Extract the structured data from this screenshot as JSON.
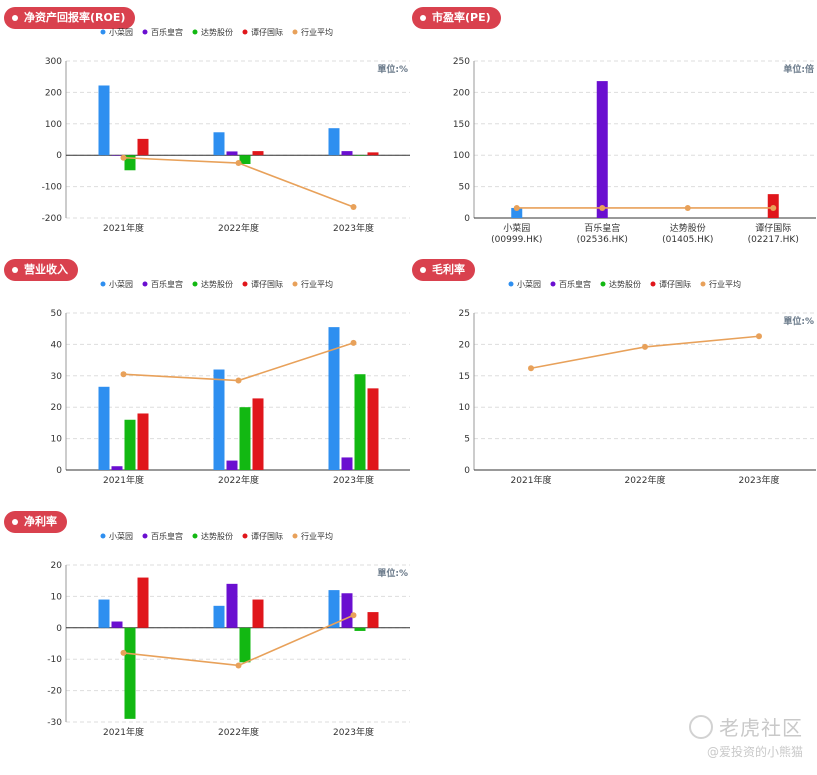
{
  "colors": {
    "pill_bg": "#d9414e",
    "series": [
      "#2e8ff0",
      "#6a0fd0",
      "#12b812",
      "#e0161b"
    ],
    "avg": "#e8a15a",
    "grid": "#dddddd",
    "axis": "#333333"
  },
  "watermark": {
    "brand": "老虎社区",
    "handle": "@爱投资的小熊猫"
  },
  "chart_data": [
    {
      "id": "roe",
      "type": "bar",
      "title": "净资产回报率(ROE)",
      "unit_label": "單位:%",
      "categories": [
        "2021年度",
        "2022年度",
        "2023年度"
      ],
      "ylim": [
        -200,
        300
      ],
      "yticks": [
        300,
        200,
        100,
        0,
        -100,
        -200
      ],
      "grid": true,
      "legend_position": "top",
      "series": [
        {
          "name": "小菜园",
          "values": [
            222,
            73,
            86
          ]
        },
        {
          "name": "百乐皇宫",
          "values": [
            0,
            12,
            13
          ]
        },
        {
          "name": "达势股份",
          "values": [
            -48,
            -28,
            0
          ]
        },
        {
          "name": "谭仔国际",
          "values": [
            52,
            13,
            9
          ]
        }
      ],
      "line": {
        "name": "行业平均",
        "values": [
          -8,
          -25,
          -165
        ]
      }
    },
    {
      "id": "pe",
      "type": "bar",
      "title": "市盈率(PE)",
      "unit_label": "单位:倍",
      "categories": [
        "小菜园\n(00999.HK)",
        "百乐皇宫\n(02536.HK)",
        "达势股份\n(01405.HK)",
        "谭仔国际\n(02217.HK)"
      ],
      "ylim": [
        0,
        250
      ],
      "yticks": [
        250,
        200,
        150,
        100,
        50,
        0
      ],
      "grid": true,
      "values": [
        16,
        218,
        0,
        38
      ],
      "line": {
        "name": "行业平均",
        "values": [
          16,
          16,
          16,
          16
        ]
      }
    },
    {
      "id": "revenue",
      "type": "bar",
      "title": "营业收入",
      "unit_label": "",
      "categories": [
        "2021年度",
        "2022年度",
        "2023年度"
      ],
      "ylim": [
        0,
        50
      ],
      "yticks": [
        50,
        40,
        30,
        20,
        10,
        0
      ],
      "grid": true,
      "legend_position": "top",
      "series": [
        {
          "name": "小菜园",
          "values": [
            26.5,
            32,
            45.5
          ]
        },
        {
          "name": "百乐皇宫",
          "values": [
            1.2,
            3,
            4
          ]
        },
        {
          "name": "达势股份",
          "values": [
            16,
            20,
            30.5
          ]
        },
        {
          "name": "谭仔国际",
          "values": [
            18,
            22.8,
            26
          ]
        }
      ],
      "line": {
        "name": "行业平均",
        "values": [
          30.5,
          28.5,
          40.5
        ]
      }
    },
    {
      "id": "gross",
      "type": "line",
      "title": "毛利率",
      "unit_label": "單位:%",
      "categories": [
        "2021年度",
        "2022年度",
        "2023年度"
      ],
      "ylim": [
        0,
        25
      ],
      "yticks": [
        25,
        20,
        15,
        10,
        5,
        0
      ],
      "grid": true,
      "legend_position": "top",
      "series": [
        {
          "name": "小菜园",
          "values": [
            null,
            null,
            null
          ]
        },
        {
          "name": "百乐皇宫",
          "values": [
            null,
            null,
            null
          ]
        },
        {
          "name": "达势股份",
          "values": [
            null,
            null,
            null
          ]
        },
        {
          "name": "谭仔国际",
          "values": [
            null,
            null,
            null
          ]
        }
      ],
      "line": {
        "name": "行业平均",
        "values": [
          16.2,
          19.6,
          21.3
        ]
      }
    },
    {
      "id": "netmargin",
      "type": "bar",
      "title": "净利率",
      "unit_label": "單位:%",
      "categories": [
        "2021年度",
        "2022年度",
        "2023年度"
      ],
      "ylim": [
        -30,
        20
      ],
      "yticks": [
        20,
        10,
        0,
        -10,
        -20,
        -30
      ],
      "grid": true,
      "legend_position": "top",
      "series": [
        {
          "name": "小菜园",
          "values": [
            9,
            7,
            12
          ]
        },
        {
          "name": "百乐皇宫",
          "values": [
            2,
            14,
            11
          ]
        },
        {
          "name": "达势股份",
          "values": [
            -29,
            -11,
            -1
          ]
        },
        {
          "name": "谭仔国际",
          "values": [
            16,
            9,
            5
          ]
        }
      ],
      "line": {
        "name": "行业平均",
        "values": [
          -8,
          -12,
          4
        ]
      }
    }
  ]
}
